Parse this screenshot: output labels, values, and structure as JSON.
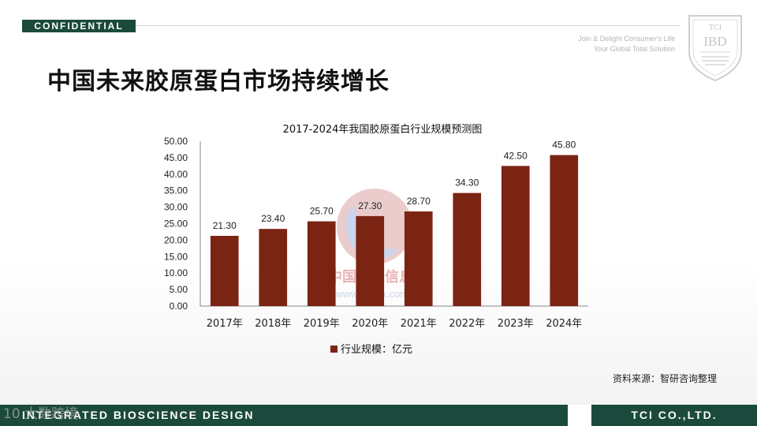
{
  "header": {
    "badge": "CONFIDENTIAL",
    "tagline_line1": "Join & Delight Consumer's Life",
    "tagline_line2": "Your Global Total Solution",
    "logo_top": "TCI",
    "logo_mid": "IBD"
  },
  "slide_title": "中国未来胶原蛋白市场持续增长",
  "chart_data": {
    "type": "bar",
    "title": "2017-2024年我国胶原蛋白行业规模预测图",
    "categories": [
      "2017年",
      "2018年",
      "2019年",
      "2020年",
      "2021年",
      "2022年",
      "2023年",
      "2024年"
    ],
    "series": [
      {
        "name": "行业规模：亿元",
        "values": [
          21.3,
          23.4,
          25.7,
          27.3,
          28.7,
          34.3,
          42.5,
          45.8
        ]
      }
    ],
    "data_labels": [
      "21.30",
      "23.40",
      "25.70",
      "27.30",
      "28.70",
      "34.30",
      "42.50",
      "45.80"
    ],
    "y_ticks": [
      "0.00",
      "5.00",
      "10.00",
      "15.00",
      "20.00",
      "25.00",
      "30.00",
      "35.00",
      "40.00",
      "45.00",
      "50.00"
    ],
    "ylim": [
      0,
      50
    ],
    "bar_color": "#7b2413",
    "grid": false,
    "legend_position": "bottom"
  },
  "source_note": "资料来源：智研咨询整理",
  "watermark": {
    "site_text": "www.chyxx.com",
    "brand_text": "中国产业信息",
    "corner_text": "大数跨境",
    "corner_mark": "10"
  },
  "footer": {
    "left_text": "INTEGRATED BIOSCIENCE DESIGN",
    "right_text": "TCI CO.,LTD."
  },
  "colors": {
    "brand_green": "#1b4a3c",
    "bar": "#7b2413"
  }
}
